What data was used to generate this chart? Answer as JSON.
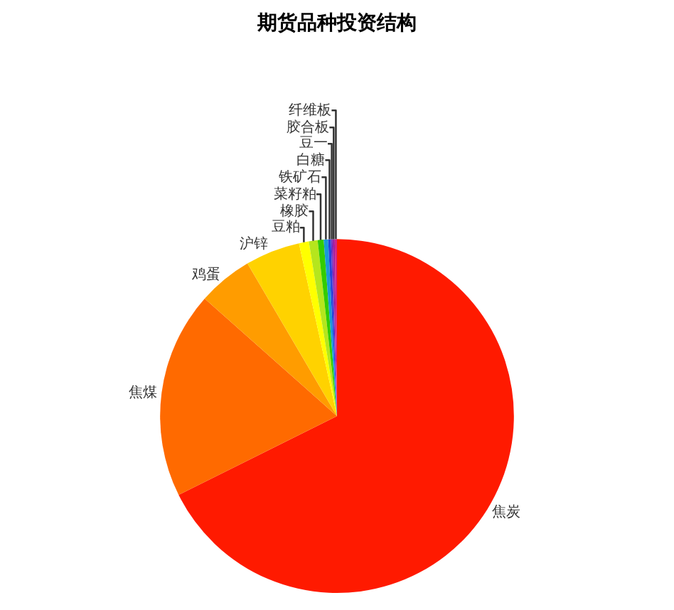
{
  "chart_data": {
    "type": "pie",
    "title": "期货品种投资结构",
    "categories": [
      "焦炭",
      "焦煤",
      "鸡蛋",
      "沪锌",
      "豆粕",
      "橡胶",
      "菜籽粕",
      "铁矿石",
      "白糖",
      "豆一",
      "胶合板",
      "纤维板"
    ],
    "values": [
      67.65,
      18.9,
      5.0,
      5.0,
      0.9,
      0.8,
      0.55,
      0.4,
      0.25,
      0.15,
      0.2,
      0.2
    ],
    "colors": [
      "#ff1a00",
      "#ff6a00",
      "#ff9c00",
      "#ffd200",
      "#ffff00",
      "#b5e61d",
      "#33cc00",
      "#1a9ad6",
      "#2244dd",
      "#6a2bc2",
      "#a020a0",
      "#d0208a"
    ],
    "legend": false
  }
}
